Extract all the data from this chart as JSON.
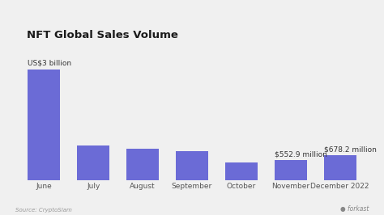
{
  "title": "NFT Global Sales Volume",
  "categories": [
    "June",
    "July",
    "August",
    "September",
    "October",
    "November",
    "December 2022"
  ],
  "values": [
    3000,
    950,
    860,
    790,
    490,
    552.9,
    678.2
  ],
  "bar_color": "#6b6bd6",
  "background_color": "#f0f0f0",
  "annotations": {
    "0": "US$3 billion",
    "5": "$552.9 million",
    "6": "$678.2 million"
  },
  "source_text": "Source: CryptoSlam",
  "logo_text": "forkast",
  "title_fontsize": 9.5,
  "label_fontsize": 6.5,
  "annot_fontsize": 6.5
}
